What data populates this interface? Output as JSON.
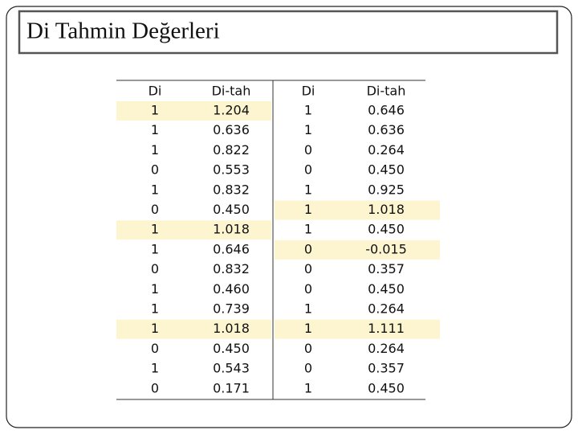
{
  "header": {
    "title": "Di  Tahmin Değerleri"
  },
  "table": {
    "columns": [
      "Di",
      "Di-tah",
      "Di",
      "Di-tah"
    ],
    "rows": [
      [
        "1",
        "1.204",
        "1",
        "0.646"
      ],
      [
        "1",
        "0.636",
        "1",
        "0.636"
      ],
      [
        "1",
        "0.822",
        "0",
        "0.264"
      ],
      [
        "0",
        "0.553",
        "0",
        "0.450"
      ],
      [
        "1",
        "0.832",
        "1",
        "0.925"
      ],
      [
        "0",
        "0.450",
        "1",
        "1.018"
      ],
      [
        "1",
        "1.018",
        "1",
        "0.450"
      ],
      [
        "1",
        "0.646",
        "0",
        "-0.015"
      ],
      [
        "0",
        "0.832",
        "0",
        "0.357"
      ],
      [
        "1",
        "0.460",
        "0",
        "0.450"
      ],
      [
        "1",
        "0.739",
        "1",
        "0.264"
      ],
      [
        "1",
        "1.018",
        "1",
        "1.111"
      ],
      [
        "0",
        "0.450",
        "0",
        "0.264"
      ],
      [
        "1",
        "0.543",
        "0",
        "0.357"
      ],
      [
        "0",
        "0.171",
        "1",
        "0.450"
      ]
    ]
  }
}
